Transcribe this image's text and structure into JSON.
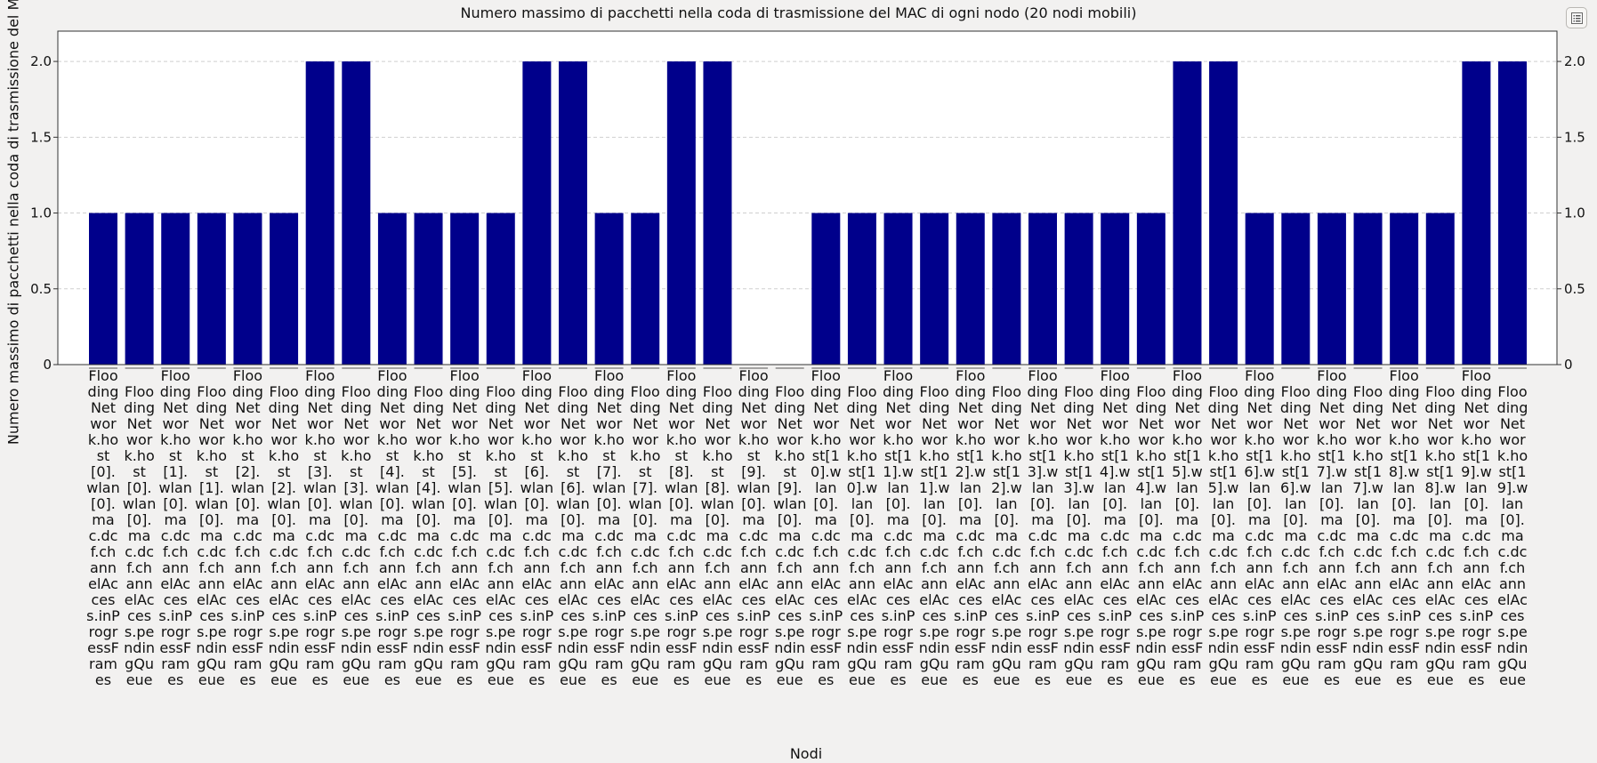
{
  "chart_data": {
    "type": "bar",
    "title": "Numero massimo di pacchetti nella coda di trasmissione del MAC di ogni nodo (20 nodi mobili)",
    "xlabel": "Nodi",
    "ylabel": "Numero massimo di pacchetti nella coda di trasmissione del MAC",
    "ylim": [
      0,
      2.2
    ],
    "yticks": [
      "0",
      "0.5",
      "1.0",
      "1.5",
      "2.0"
    ],
    "grid": "horizontal dashed",
    "bar_color": "#00008b",
    "categories": [
      "FloodingNetwork.host[0].wlan[0].mac.dcf.channelAccess.inProgressFrames",
      "FloodingNetwork.host[0].wlan[0].mac.dcf.channelAccess.pendingQueue",
      "FloodingNetwork.host[1].wlan[0].mac.dcf.channelAccess.inProgressFrames",
      "FloodingNetwork.host[1].wlan[0].mac.dcf.channelAccess.pendingQueue",
      "FloodingNetwork.host[2].wlan[0].mac.dcf.channelAccess.inProgressFrames",
      "FloodingNetwork.host[2].wlan[0].mac.dcf.channelAccess.pendingQueue",
      "FloodingNetwork.host[3].wlan[0].mac.dcf.channelAccess.inProgressFrames",
      "FloodingNetwork.host[3].wlan[0].mac.dcf.channelAccess.pendingQueue",
      "FloodingNetwork.host[4].wlan[0].mac.dcf.channelAccess.inProgressFrames",
      "FloodingNetwork.host[4].wlan[0].mac.dcf.channelAccess.pendingQueue",
      "FloodingNetwork.host[5].wlan[0].mac.dcf.channelAccess.inProgressFrames",
      "FloodingNetwork.host[5].wlan[0].mac.dcf.channelAccess.pendingQueue",
      "FloodingNetwork.host[6].wlan[0].mac.dcf.channelAccess.inProgressFrames",
      "FloodingNetwork.host[6].wlan[0].mac.dcf.channelAccess.pendingQueue",
      "FloodingNetwork.host[7].wlan[0].mac.dcf.channelAccess.inProgressFrames",
      "FloodingNetwork.host[7].wlan[0].mac.dcf.channelAccess.pendingQueue",
      "FloodingNetwork.host[8].wlan[0].mac.dcf.channelAccess.inProgressFrames",
      "FloodingNetwork.host[8].wlan[0].mac.dcf.channelAccess.pendingQueue",
      "FloodingNetwork.host[9].wlan[0].mac.dcf.channelAccess.inProgressFrames",
      "FloodingNetwork.host[9].wlan[0].mac.dcf.channelAccess.pendingQueue",
      "FloodingNetwork.host[10].wlan[0].mac.dcf.channelAccess.inProgressFrames",
      "FloodingNetwork.host[10].wlan[0].mac.dcf.channelAccess.pendingQueue",
      "FloodingNetwork.host[11].wlan[0].mac.dcf.channelAccess.inProgressFrames",
      "FloodingNetwork.host[11].wlan[0].mac.dcf.channelAccess.pendingQueue",
      "FloodingNetwork.host[12].wlan[0].mac.dcf.channelAccess.inProgressFrames",
      "FloodingNetwork.host[12].wlan[0].mac.dcf.channelAccess.pendingQueue",
      "FloodingNetwork.host[13].wlan[0].mac.dcf.channelAccess.inProgressFrames",
      "FloodingNetwork.host[13].wlan[0].mac.dcf.channelAccess.pendingQueue",
      "FloodingNetwork.host[14].wlan[0].mac.dcf.channelAccess.inProgressFrames",
      "FloodingNetwork.host[14].wlan[0].mac.dcf.channelAccess.pendingQueue",
      "FloodingNetwork.host[15].wlan[0].mac.dcf.channelAccess.inProgressFrames",
      "FloodingNetwork.host[15].wlan[0].mac.dcf.channelAccess.pendingQueue",
      "FloodingNetwork.host[16].wlan[0].mac.dcf.channelAccess.inProgressFrames",
      "FloodingNetwork.host[16].wlan[0].mac.dcf.channelAccess.pendingQueue",
      "FloodingNetwork.host[17].wlan[0].mac.dcf.channelAccess.inProgressFrames",
      "FloodingNetwork.host[17].wlan[0].mac.dcf.channelAccess.pendingQueue",
      "FloodingNetwork.host[18].wlan[0].mac.dcf.channelAccess.inProgressFrames",
      "FloodingNetwork.host[18].wlan[0].mac.dcf.channelAccess.pendingQueue",
      "FloodingNetwork.host[19].wlan[0].mac.dcf.channelAccess.inProgressFrames",
      "FloodingNetwork.host[19].wlan[0].mac.dcf.channelAccess.pendingQueue"
    ],
    "values": [
      1,
      1,
      1,
      1,
      1,
      1,
      2,
      2,
      1,
      1,
      1,
      1,
      2,
      2,
      1,
      1,
      2,
      2,
      0,
      0,
      1,
      1,
      1,
      1,
      1,
      1,
      1,
      1,
      1,
      1,
      2,
      2,
      1,
      1,
      1,
      1,
      1,
      1,
      2,
      2
    ]
  },
  "toolbar": {
    "menu_icon": "list-menu-icon"
  }
}
